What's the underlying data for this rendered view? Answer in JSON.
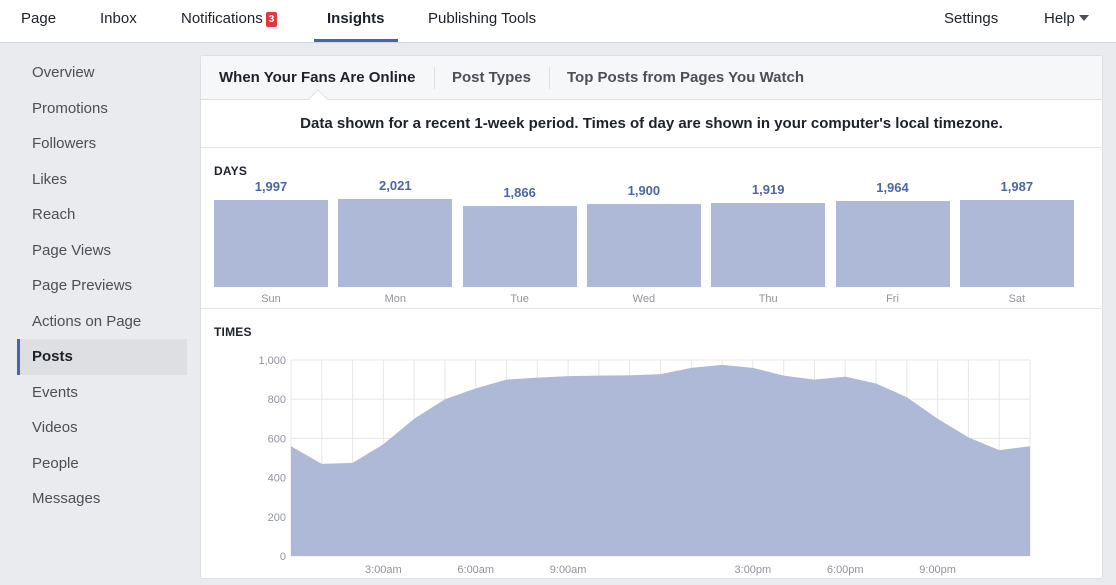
{
  "topnav": {
    "page": "Page",
    "inbox": "Inbox",
    "notifications": "Notifications",
    "notifications_count": "3",
    "insights": "Insights",
    "publishing_tools": "Publishing Tools",
    "settings": "Settings",
    "help": "Help"
  },
  "sidebar": {
    "items": [
      {
        "label": "Overview"
      },
      {
        "label": "Promotions"
      },
      {
        "label": "Followers"
      },
      {
        "label": "Likes"
      },
      {
        "label": "Reach"
      },
      {
        "label": "Page Views"
      },
      {
        "label": "Page Previews"
      },
      {
        "label": "Actions on Page"
      },
      {
        "label": "Posts"
      },
      {
        "label": "Events"
      },
      {
        "label": "Videos"
      },
      {
        "label": "People"
      },
      {
        "label": "Messages"
      }
    ],
    "active": "Posts"
  },
  "main": {
    "tabs": [
      {
        "label": "When Your Fans Are Online"
      },
      {
        "label": "Post Types"
      },
      {
        "label": "Top Posts from Pages You Watch"
      }
    ],
    "notice": "Data shown for a recent 1-week period. Times of day are shown in your computer's local timezone.",
    "days_label": "DAYS",
    "times_label": "TIMES"
  },
  "colors": {
    "bar_fill": "#aeb9d8",
    "value_text": "#4b67a5",
    "accent": "#4267b2",
    "badge": "#e4363f"
  },
  "chart_data": [
    {
      "type": "bar",
      "title": "DAYS",
      "categories": [
        "Sun",
        "Mon",
        "Tue",
        "Wed",
        "Thu",
        "Fri",
        "Sat"
      ],
      "values": [
        1997,
        2021,
        1866,
        1900,
        1919,
        1964,
        1987
      ],
      "value_labels": [
        "1,997",
        "2,021",
        "1,866",
        "1,900",
        "1,919",
        "1,964",
        "1,987"
      ]
    },
    {
      "type": "area",
      "title": "TIMES",
      "x": [
        0,
        1,
        2,
        3,
        4,
        5,
        6,
        7,
        8,
        9,
        10,
        11,
        12,
        13,
        14,
        15,
        16,
        17,
        18,
        19,
        20,
        21,
        22,
        23,
        24
      ],
      "values": [
        560,
        470,
        475,
        570,
        700,
        800,
        855,
        900,
        910,
        918,
        920,
        922,
        928,
        960,
        975,
        960,
        920,
        900,
        915,
        880,
        810,
        700,
        605,
        540,
        560
      ],
      "xlabels": [
        {
          "x": 3,
          "label": "3:00am"
        },
        {
          "x": 6,
          "label": "6:00am"
        },
        {
          "x": 9,
          "label": "9:00am"
        },
        {
          "x": 15,
          "label": "3:00pm"
        },
        {
          "x": 18,
          "label": "6:00pm"
        },
        {
          "x": 21,
          "label": "9:00pm"
        }
      ],
      "yticks": [
        {
          "v": 0,
          "label": "0"
        },
        {
          "v": 200,
          "label": "200"
        },
        {
          "v": 400,
          "label": "400"
        },
        {
          "v": 600,
          "label": "600"
        },
        {
          "v": 800,
          "label": "800"
        },
        {
          "v": 1000,
          "label": "1,000"
        }
      ],
      "ylim": [
        0,
        1000
      ],
      "xlim": [
        0,
        24
      ],
      "grid": true
    }
  ]
}
